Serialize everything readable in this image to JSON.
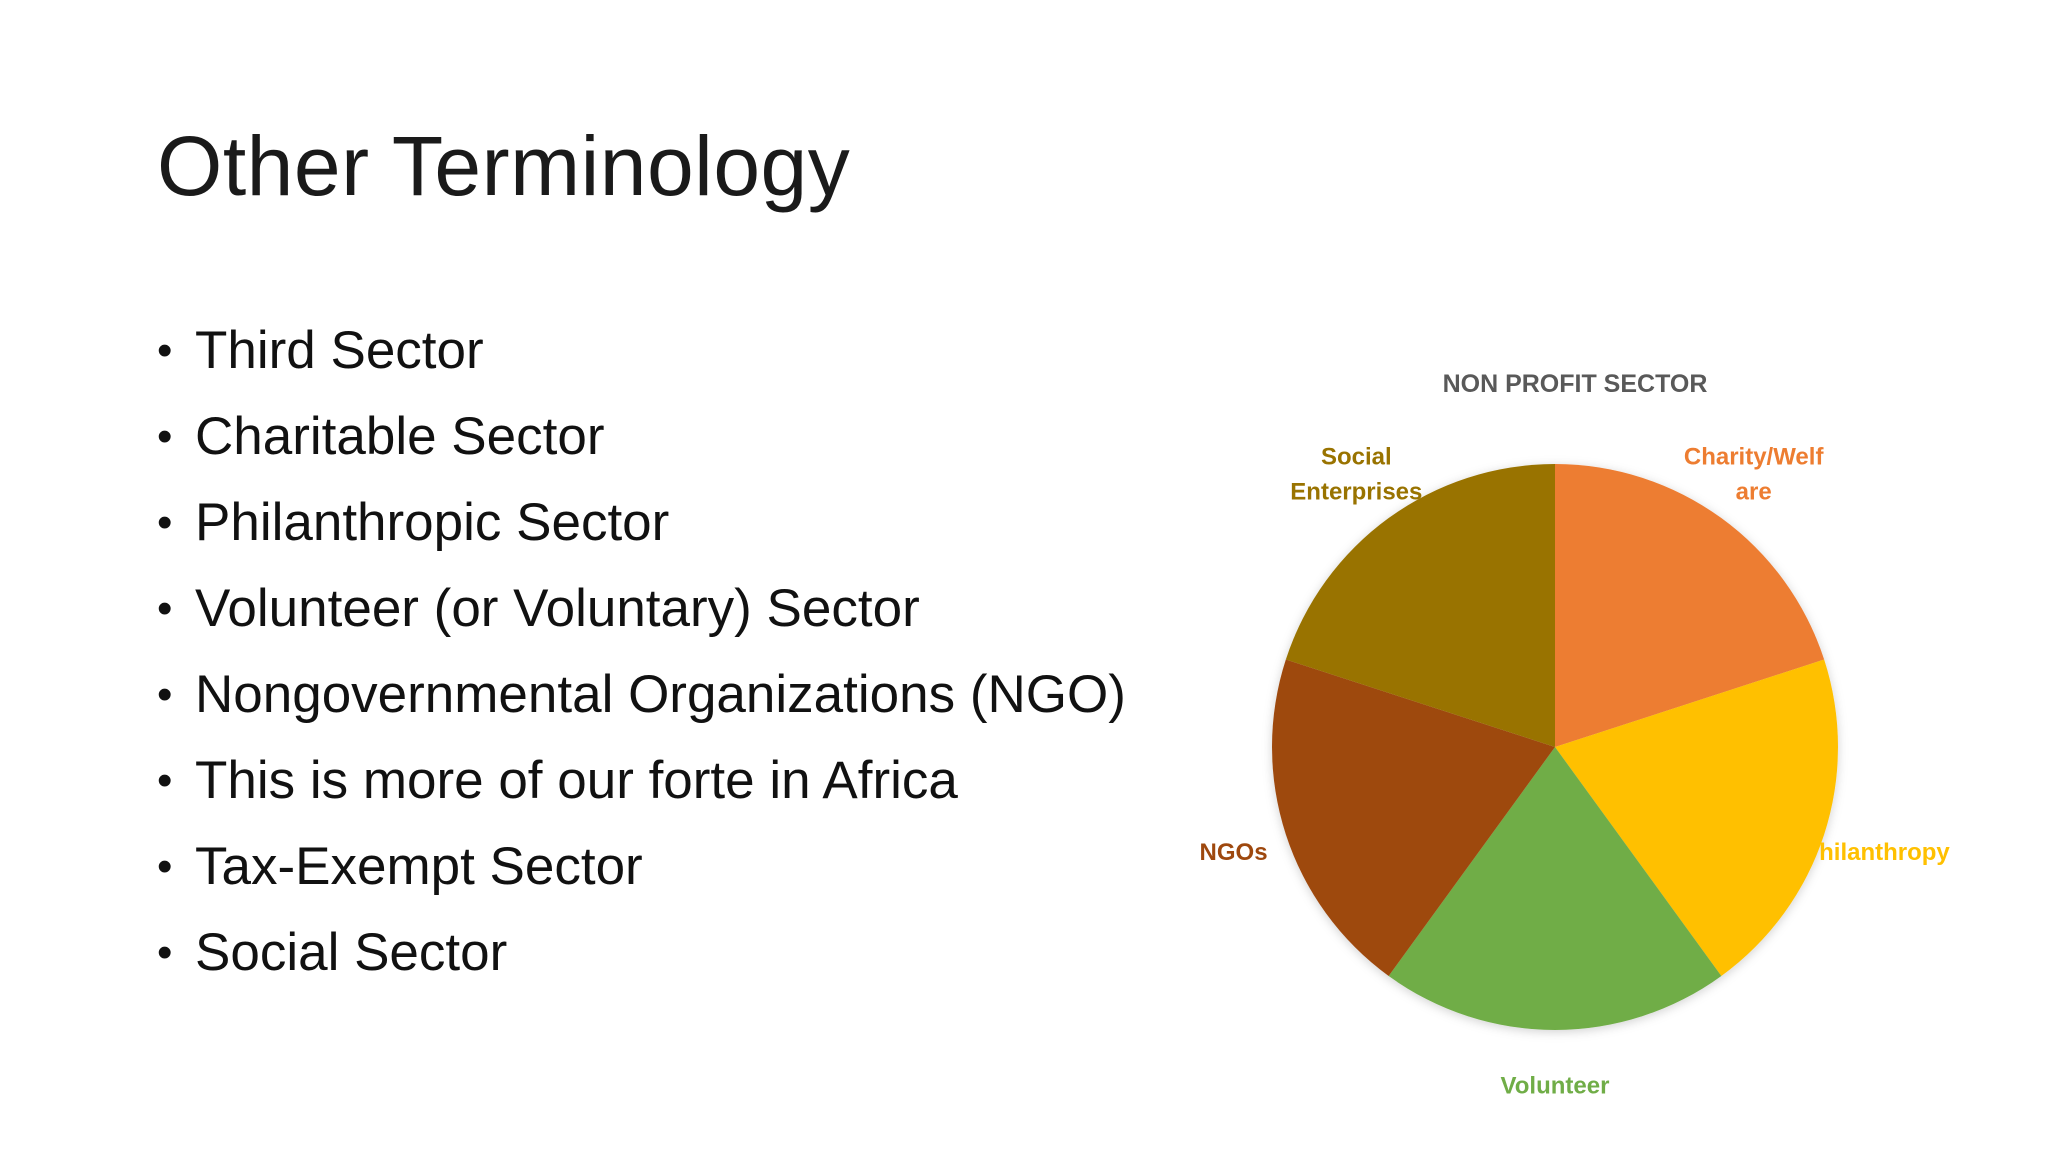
{
  "slide": {
    "title": "Other Terminology",
    "bullets": [
      "Third Sector",
      "Charitable Sector",
      "Philanthropic Sector",
      "Volunteer (or Voluntary) Sector",
      "Nongovernmental Organizations (NGO)",
      "This is more of our forte in Africa",
      "Tax-Exempt Sector",
      "Social Sector"
    ]
  },
  "chart_data": {
    "type": "pie",
    "title": "NON PROFIT SECTOR",
    "categories": [
      "Charity/Welfare",
      "Philanthropy",
      "Volunteer",
      "NGOs",
      "Social Enterprises"
    ],
    "values": [
      20,
      20,
      20,
      20,
      20
    ],
    "label_lines": [
      [
        "Charity/Welf",
        "are"
      ],
      [
        "Philanthropy"
      ],
      [
        "Volunteer"
      ],
      [
        "NGOs"
      ],
      [
        "Social",
        "Enterprises"
      ]
    ],
    "colors": [
      "#ED7D31",
      "#FFC000",
      "#70AD47",
      "#9E480E",
      "#997300"
    ],
    "title_color": "#595959",
    "legend": "none"
  }
}
